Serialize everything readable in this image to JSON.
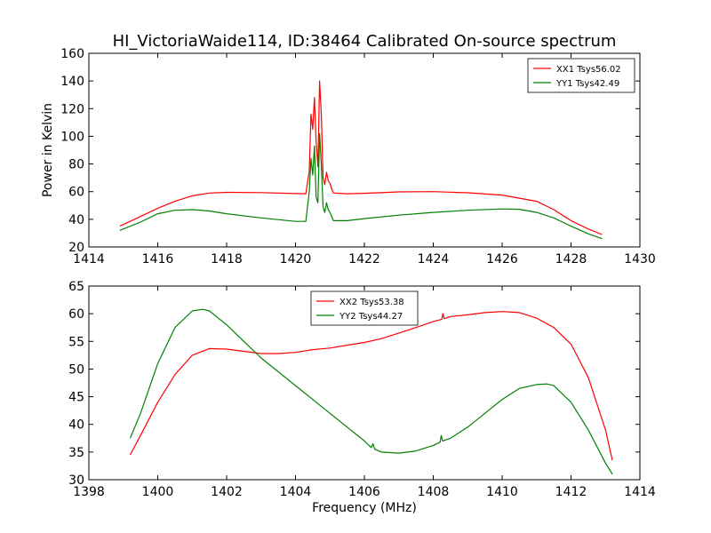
{
  "figure": {
    "title": "HI_VictoriaWaide114, ID:38464 Calibrated On-source spectrum"
  },
  "chart_data": [
    {
      "type": "line",
      "title": "HI_VictoriaWaide114, ID:38464 Calibrated On-source spectrum",
      "xlabel": "",
      "ylabel": "Power in Kelvin",
      "xlim": [
        1414,
        1430
      ],
      "ylim": [
        20,
        160
      ],
      "xticks": [
        "1414",
        "1416",
        "1418",
        "1420",
        "1422",
        "1424",
        "1426",
        "1428",
        "1430"
      ],
      "yticks": [
        "20",
        "40",
        "60",
        "80",
        "100",
        "120",
        "140",
        "160"
      ],
      "grid": false,
      "legend_position": "top-right",
      "series": [
        {
          "name": "XX1 Tsys56.02",
          "color": "#ff0000",
          "points": [
            [
              1414.9,
              35
            ],
            [
              1415.5,
              42
            ],
            [
              1416,
              48
            ],
            [
              1416.5,
              53
            ],
            [
              1417,
              57
            ],
            [
              1417.5,
              59
            ],
            [
              1418,
              59.5
            ],
            [
              1419,
              59.3
            ],
            [
              1420,
              58.6
            ],
            [
              1420.3,
              58.5
            ],
            [
              1420.4,
              75
            ],
            [
              1420.45,
              116
            ],
            [
              1420.5,
              105
            ],
            [
              1420.55,
              128
            ],
            [
              1420.6,
              96
            ],
            [
              1420.65,
              78
            ],
            [
              1420.7,
              140
            ],
            [
              1420.75,
              115
            ],
            [
              1420.8,
              70
            ],
            [
              1420.85,
              65
            ],
            [
              1420.9,
              74
            ],
            [
              1420.95,
              68
            ],
            [
              1421,
              66
            ],
            [
              1421.05,
              62
            ],
            [
              1421.1,
              59
            ],
            [
              1421.5,
              58.5
            ],
            [
              1422,
              58.8
            ],
            [
              1423,
              59.8
            ],
            [
              1424,
              60
            ],
            [
              1425,
              59.2
            ],
            [
              1426,
              57.5
            ],
            [
              1427,
              53
            ],
            [
              1427.5,
              47
            ],
            [
              1428,
              39
            ],
            [
              1428.5,
              33
            ],
            [
              1428.9,
              29
            ]
          ]
        },
        {
          "name": "YY1 Tsys42.49",
          "color": "#008000",
          "points": [
            [
              1414.9,
              32
            ],
            [
              1415.5,
              38
            ],
            [
              1416,
              44
            ],
            [
              1416.5,
              46.5
            ],
            [
              1417,
              47
            ],
            [
              1417.5,
              46
            ],
            [
              1418,
              44
            ],
            [
              1419,
              41
            ],
            [
              1420,
              38.5
            ],
            [
              1420.3,
              38.5
            ],
            [
              1420.4,
              60
            ],
            [
              1420.45,
              84
            ],
            [
              1420.5,
              72
            ],
            [
              1420.55,
              93
            ],
            [
              1420.6,
              56
            ],
            [
              1420.65,
              52
            ],
            [
              1420.7,
              102
            ],
            [
              1420.75,
              79
            ],
            [
              1420.8,
              49
            ],
            [
              1420.85,
              45
            ],
            [
              1420.9,
              52
            ],
            [
              1420.95,
              47
            ],
            [
              1421,
              45
            ],
            [
              1421.05,
              42
            ],
            [
              1421.1,
              39
            ],
            [
              1421.5,
              39
            ],
            [
              1422,
              40.5
            ],
            [
              1423,
              43
            ],
            [
              1424,
              45
            ],
            [
              1425,
              46.5
            ],
            [
              1426,
              47.5
            ],
            [
              1426.5,
              47.2
            ],
            [
              1427,
              45
            ],
            [
              1427.5,
              41
            ],
            [
              1428,
              35
            ],
            [
              1428.5,
              29.5
            ],
            [
              1428.9,
              26
            ]
          ]
        }
      ]
    },
    {
      "type": "line",
      "title": "",
      "xlabel": "Frequency (MHz)",
      "ylabel": "",
      "xlim": [
        1398,
        1414
      ],
      "ylim": [
        30,
        65
      ],
      "xticks": [
        "1398",
        "1400",
        "1402",
        "1404",
        "1406",
        "1408",
        "1410",
        "1412",
        "1414"
      ],
      "yticks": [
        "30",
        "35",
        "40",
        "45",
        "50",
        "55",
        "60",
        "65"
      ],
      "grid": false,
      "legend_position": "top-center",
      "series": [
        {
          "name": "XX2 Tsys53.38",
          "color": "#ff0000",
          "points": [
            [
              1399.2,
              34.5
            ],
            [
              1399.5,
              38
            ],
            [
              1400,
              44
            ],
            [
              1400.5,
              49
            ],
            [
              1401,
              52.5
            ],
            [
              1401.5,
              53.7
            ],
            [
              1402,
              53.6
            ],
            [
              1402.5,
              53.2
            ],
            [
              1403,
              52.8
            ],
            [
              1403.5,
              52.8
            ],
            [
              1404,
              53
            ],
            [
              1404.5,
              53.5
            ],
            [
              1405,
              53.8
            ],
            [
              1405.5,
              54.3
            ],
            [
              1406,
              54.8
            ],
            [
              1406.5,
              55.5
            ],
            [
              1407,
              56.5
            ],
            [
              1407.5,
              57.5
            ],
            [
              1408,
              58.6
            ],
            [
              1408.25,
              59
            ],
            [
              1408.28,
              60
            ],
            [
              1408.32,
              59.1
            ],
            [
              1408.5,
              59.5
            ],
            [
              1409,
              59.8
            ],
            [
              1409.5,
              60.2
            ],
            [
              1410,
              60.4
            ],
            [
              1410.5,
              60.2
            ],
            [
              1411,
              59.2
            ],
            [
              1411.5,
              57.5
            ],
            [
              1412,
              54.5
            ],
            [
              1412.5,
              48.5
            ],
            [
              1413,
              39
            ],
            [
              1413.2,
              33.5
            ]
          ]
        },
        {
          "name": "YY2 Tsys44.27",
          "color": "#008000",
          "points": [
            [
              1399.2,
              37.5
            ],
            [
              1399.5,
              42
            ],
            [
              1400,
              51
            ],
            [
              1400.5,
              57.5
            ],
            [
              1401,
              60.5
            ],
            [
              1401.3,
              60.8
            ],
            [
              1401.5,
              60.5
            ],
            [
              1402,
              58
            ],
            [
              1402.5,
              55
            ],
            [
              1403,
              52
            ],
            [
              1403.5,
              49.5
            ],
            [
              1404,
              47
            ],
            [
              1404.5,
              44.5
            ],
            [
              1405,
              42
            ],
            [
              1405.5,
              39.5
            ],
            [
              1406,
              37
            ],
            [
              1406.2,
              35.8
            ],
            [
              1406.25,
              36.5
            ],
            [
              1406.3,
              35.5
            ],
            [
              1406.5,
              35
            ],
            [
              1407,
              34.8
            ],
            [
              1407.5,
              35.2
            ],
            [
              1408,
              36.2
            ],
            [
              1408.2,
              36.8
            ],
            [
              1408.23,
              38
            ],
            [
              1408.27,
              37
            ],
            [
              1408.5,
              37.5
            ],
            [
              1409,
              39.5
            ],
            [
              1409.5,
              42
            ],
            [
              1410,
              44.5
            ],
            [
              1410.5,
              46.5
            ],
            [
              1411,
              47.2
            ],
            [
              1411.3,
              47.3
            ],
            [
              1411.5,
              47
            ],
            [
              1412,
              44
            ],
            [
              1412.5,
              39
            ],
            [
              1413,
              33
            ],
            [
              1413.2,
              31
            ]
          ]
        }
      ]
    }
  ]
}
